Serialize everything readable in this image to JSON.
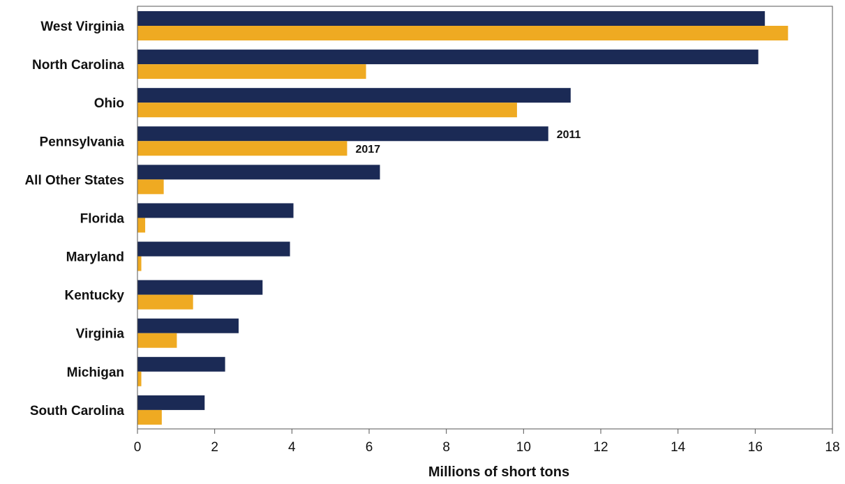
{
  "chart_data": {
    "type": "bar",
    "orientation": "horizontal",
    "categories": [
      "West Virginia",
      "North Carolina",
      "Ohio",
      "Pennsylvania",
      "All Other States",
      "Florida",
      "Maryland",
      "Kentucky",
      "Virginia",
      "Michigan",
      "South Carolina"
    ],
    "series": [
      {
        "name": "2011",
        "color": "#1b2a55",
        "values": [
          16.25,
          16.08,
          11.22,
          10.64,
          6.28,
          4.04,
          3.95,
          3.24,
          2.62,
          2.27,
          1.74
        ]
      },
      {
        "name": "2017",
        "color": "#efaa22",
        "values": [
          16.85,
          5.92,
          9.83,
          5.43,
          0.68,
          0.2,
          0.1,
          1.44,
          1.02,
          0.1,
          0.63
        ]
      }
    ],
    "series_labels_on": "Pennsylvania",
    "xlabel": "Millions of short tons",
    "ylabel": "",
    "title": "",
    "xlim": [
      0,
      18
    ],
    "xticks": [
      "0",
      "2",
      "4",
      "6",
      "8",
      "10",
      "12",
      "14",
      "16",
      "18"
    ],
    "grid": false,
    "legend": "none"
  }
}
